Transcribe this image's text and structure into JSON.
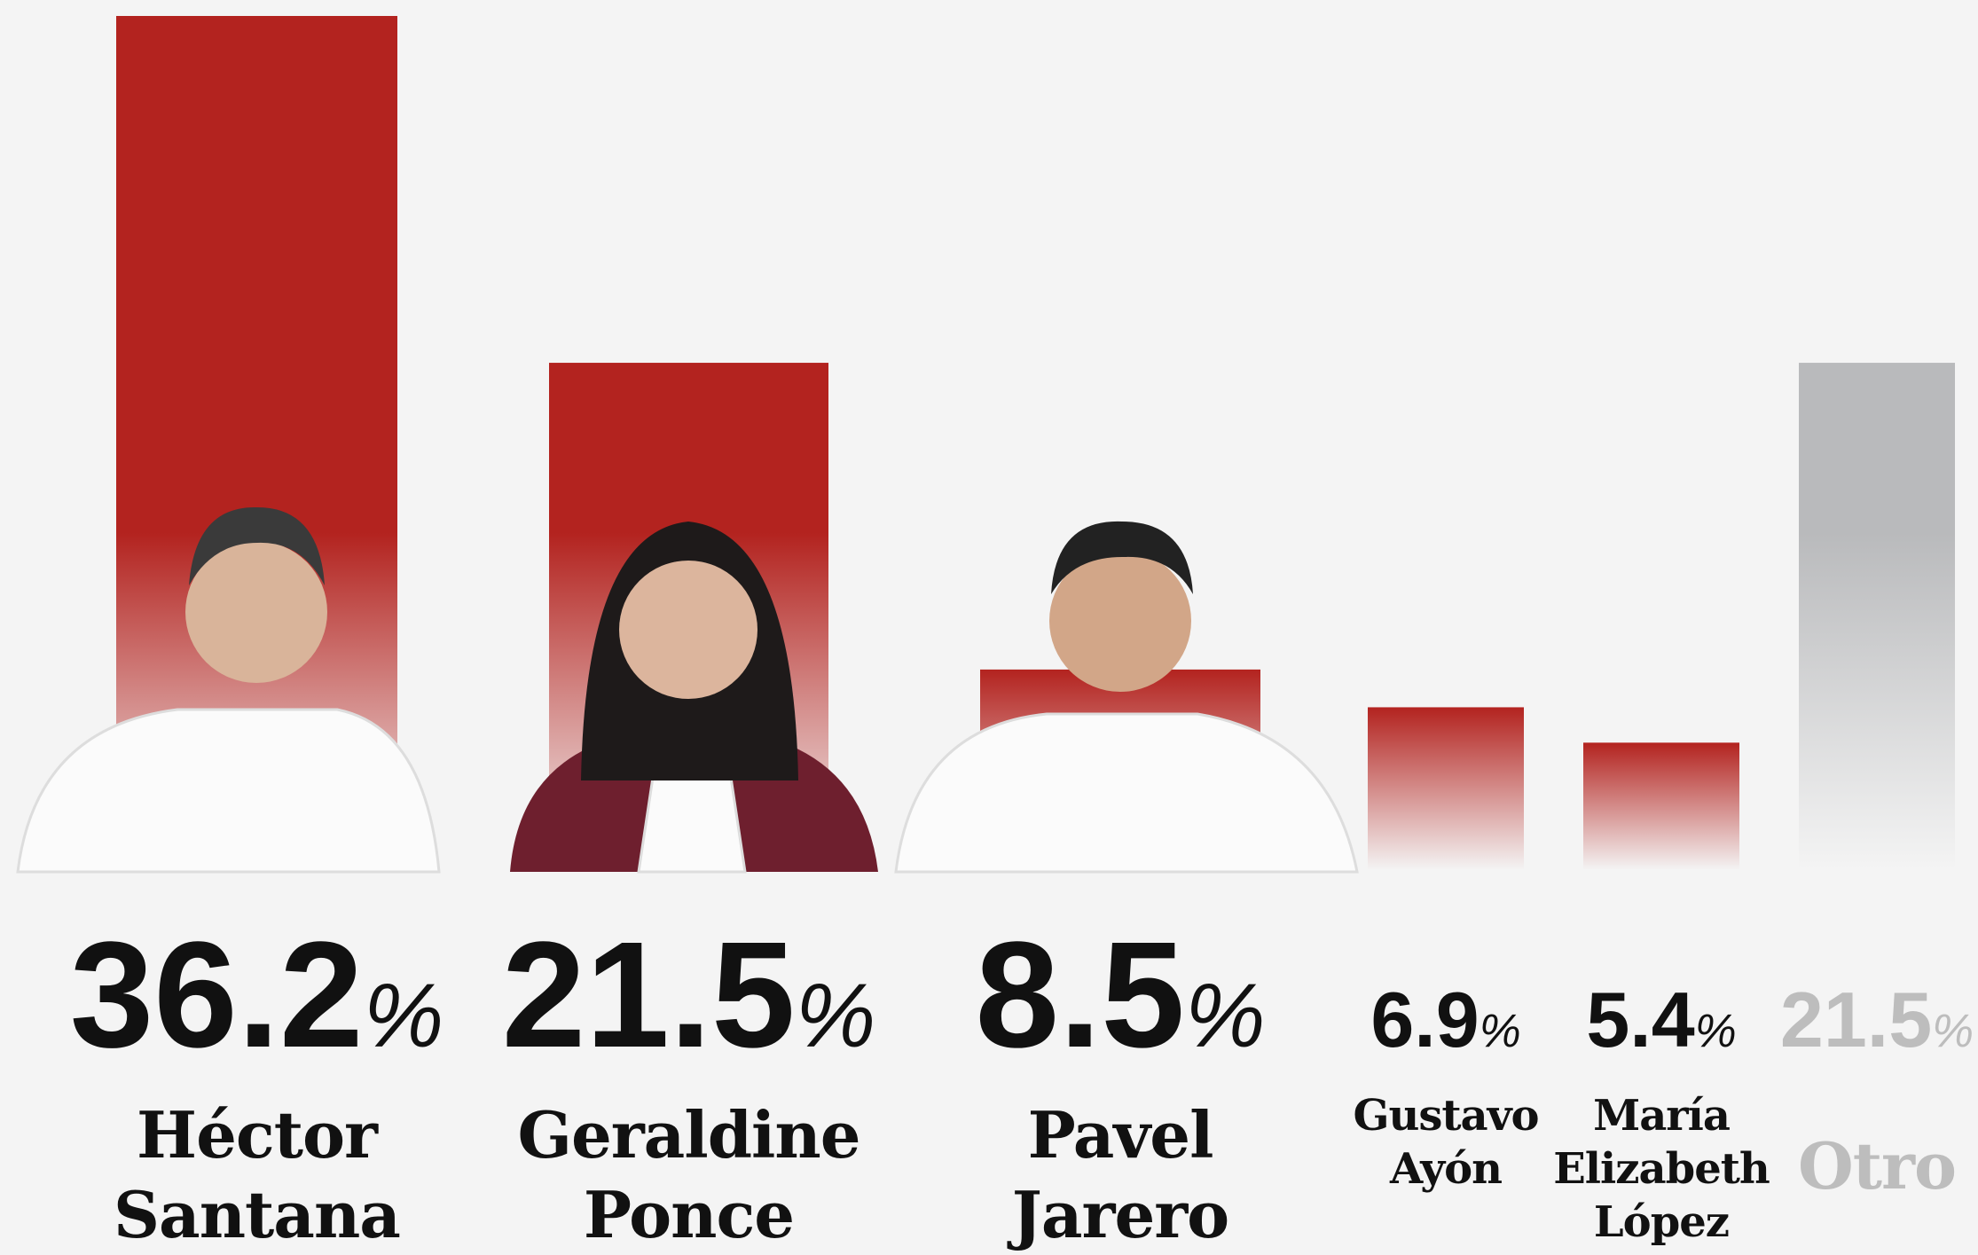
{
  "chart_data": {
    "type": "bar",
    "categories": [
      "Héctor Santana",
      "Geraldine Ponce",
      "Pavel Jarero",
      "Gustavo Ayón",
      "María Elizabeth López",
      "Otro"
    ],
    "values": [
      36.2,
      21.5,
      8.5,
      6.9,
      5.4,
      21.5
    ],
    "value_labels": [
      "36.2%",
      "21.5%",
      "8.5%",
      "6.9%",
      "5.4%",
      "21.5%"
    ],
    "colors": [
      "#b3231f",
      "#b3231f",
      "#b3231f",
      "#b3231f",
      "#b3231f",
      "#b9babc"
    ]
  }
}
